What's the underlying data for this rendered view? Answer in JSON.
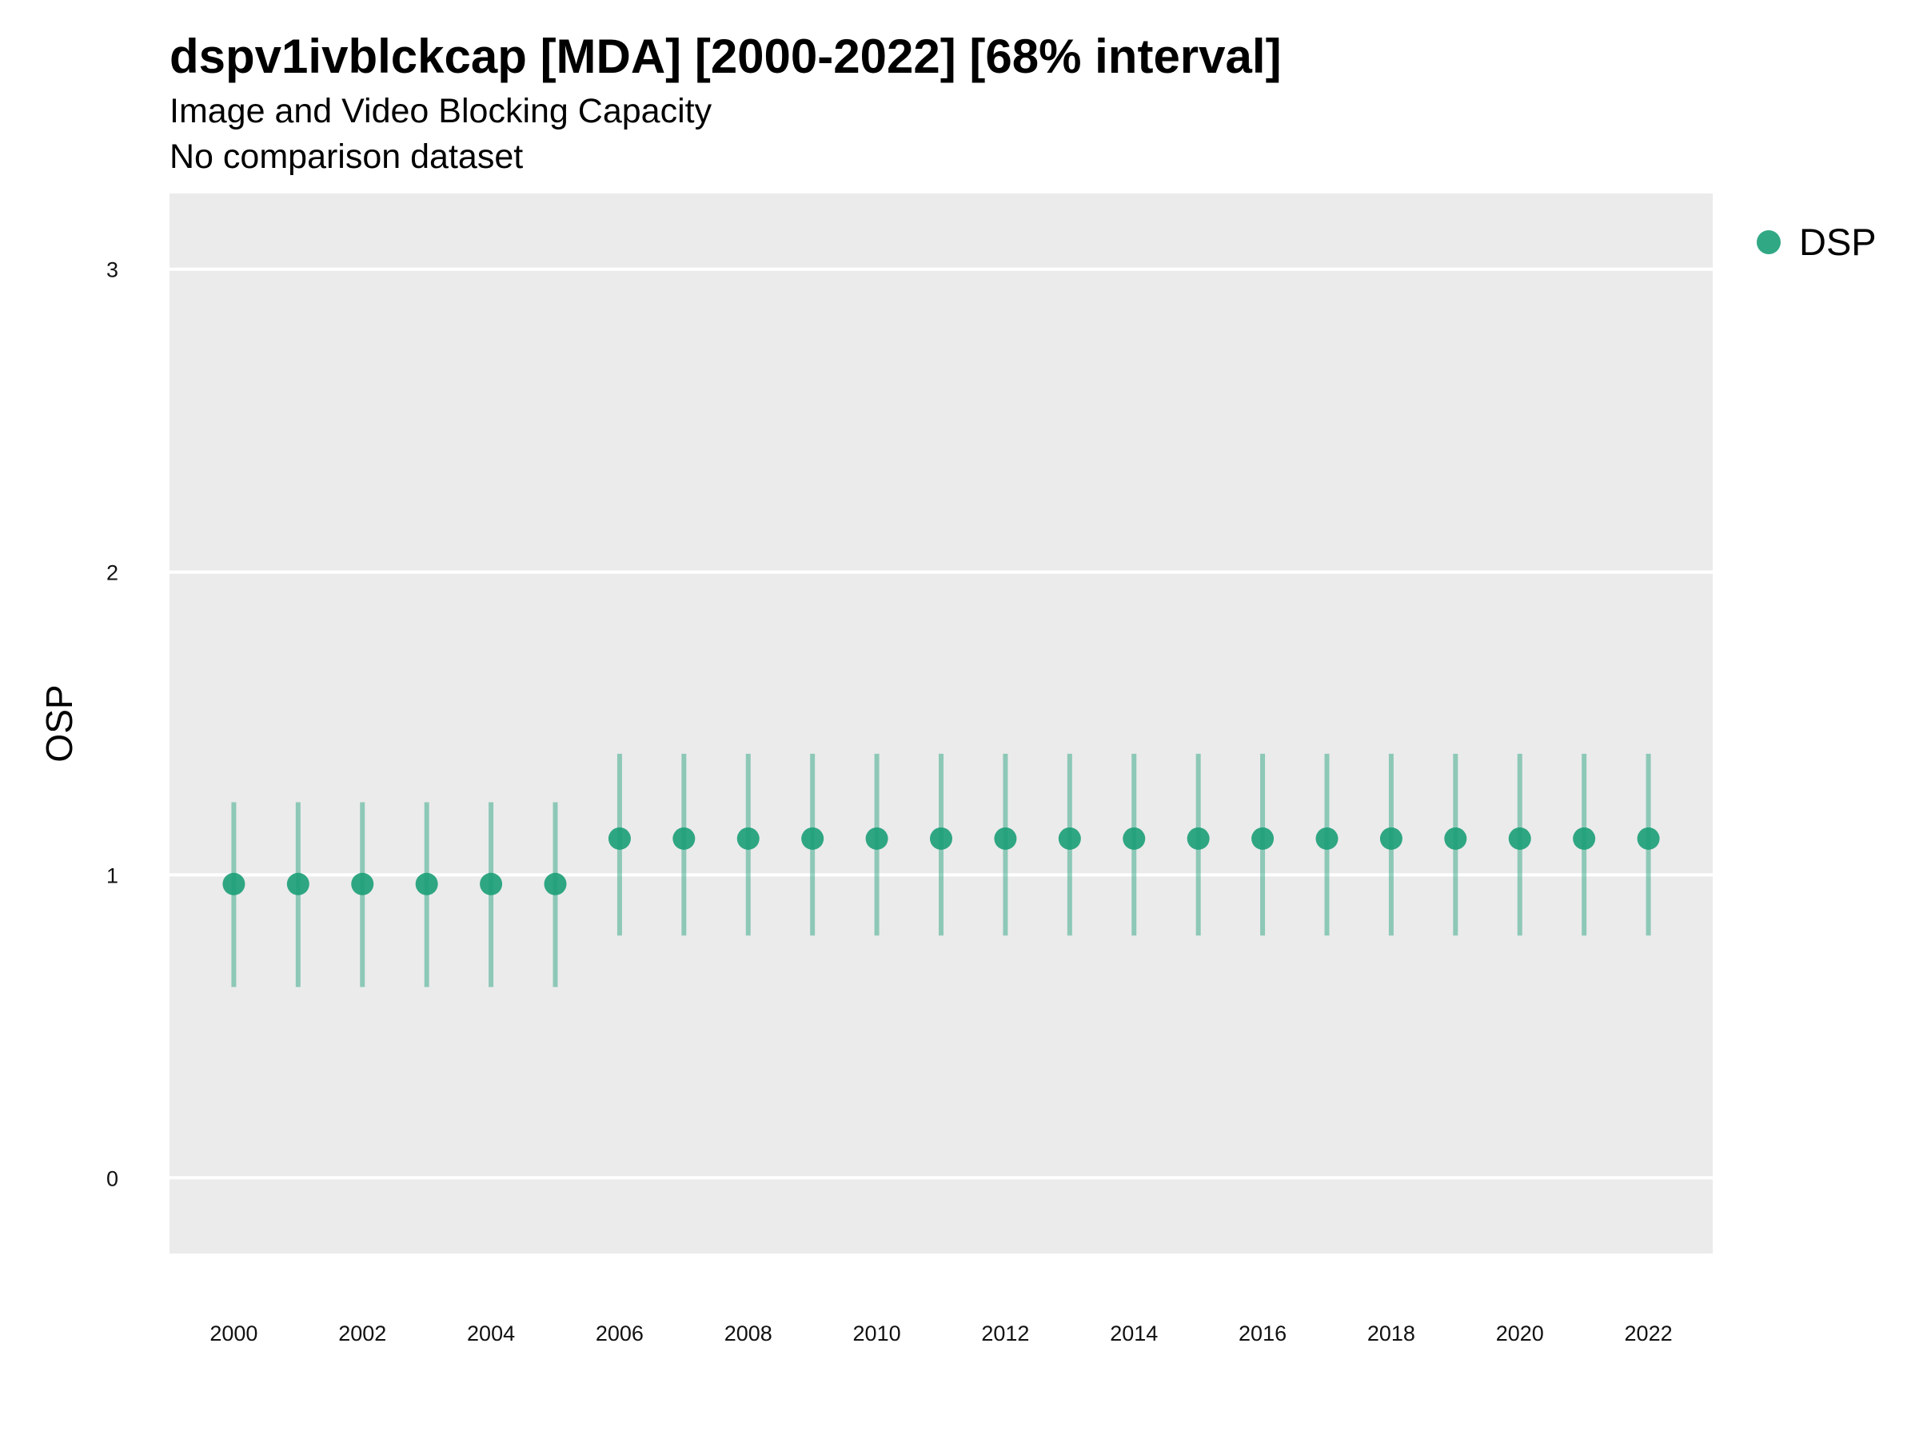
{
  "chart_data": {
    "type": "scatter",
    "title": "dspv1ivblckcap [MDA] [2000-2022] [68% interval]",
    "subtitle": "Image and Video Blocking Capacity",
    "caption": "No comparison dataset",
    "xlabel": "",
    "ylabel": "OSP",
    "xlim": [
      1999,
      2023
    ],
    "ylim": [
      -0.25,
      3.25
    ],
    "x_ticks": [
      2000,
      2002,
      2004,
      2006,
      2008,
      2010,
      2012,
      2014,
      2016,
      2018,
      2020,
      2022
    ],
    "y_ticks": [
      0,
      1,
      2,
      3
    ],
    "grid": true,
    "legend_position": "right",
    "series": [
      {
        "name": "DSP",
        "color": "#1b9e77",
        "x": [
          2000,
          2001,
          2002,
          2003,
          2004,
          2005,
          2006,
          2007,
          2008,
          2009,
          2010,
          2011,
          2012,
          2013,
          2014,
          2015,
          2016,
          2017,
          2018,
          2019,
          2020,
          2021,
          2022
        ],
        "y": [
          0.97,
          0.97,
          0.97,
          0.97,
          0.97,
          0.97,
          1.12,
          1.12,
          1.12,
          1.12,
          1.12,
          1.12,
          1.12,
          1.12,
          1.12,
          1.12,
          1.12,
          1.12,
          1.12,
          1.12,
          1.12,
          1.12,
          1.12
        ],
        "lower": [
          0.63,
          0.63,
          0.63,
          0.63,
          0.63,
          0.63,
          0.8,
          0.8,
          0.8,
          0.8,
          0.8,
          0.8,
          0.8,
          0.8,
          0.8,
          0.8,
          0.8,
          0.8,
          0.8,
          0.8,
          0.8,
          0.8,
          0.8
        ],
        "upper": [
          1.24,
          1.24,
          1.24,
          1.24,
          1.24,
          1.24,
          1.4,
          1.4,
          1.4,
          1.4,
          1.4,
          1.4,
          1.4,
          1.4,
          1.4,
          1.4,
          1.4,
          1.4,
          1.4,
          1.4,
          1.4,
          1.4,
          1.4
        ]
      }
    ]
  }
}
